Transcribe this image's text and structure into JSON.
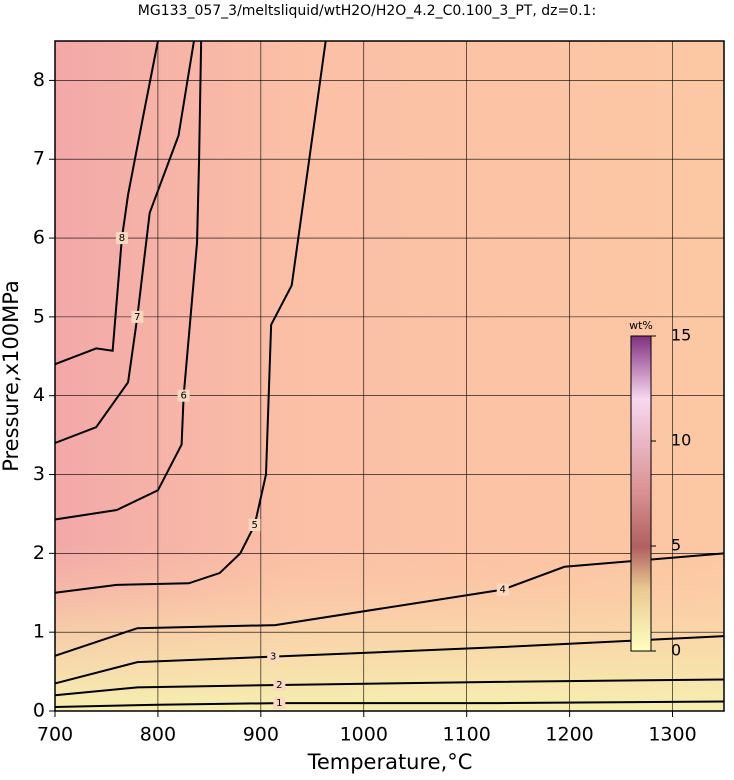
{
  "chart_data": {
    "type": "contour",
    "title": "MG133_057_3/meltsliquid/wtH2O/H2O_4.2_C0.100_3_PT, dz=0.1:",
    "x_label": "Temperature,°C",
    "y_label": "Pressure,x100MPa",
    "xlim": [
      700,
      1350
    ],
    "ylim": [
      0,
      8.5
    ],
    "xticks": [
      700,
      800,
      900,
      1000,
      1100,
      1200,
      1300
    ],
    "yticks": [
      0,
      1,
      2,
      3,
      4,
      5,
      6,
      7,
      8
    ],
    "grid": true,
    "contours": [
      {
        "level": 1,
        "x": [
          700,
          800,
          918,
          1130,
          1350
        ],
        "y": [
          0.05,
          0.08,
          0.1,
          0.1,
          0.12
        ]
      },
      {
        "level": 2,
        "x": [
          700,
          780,
          918,
          1130,
          1350
        ],
        "y": [
          0.2,
          0.3,
          0.33,
          0.37,
          0.4
        ]
      },
      {
        "level": 3,
        "x": [
          700,
          780,
          912,
          1132,
          1350
        ],
        "y": [
          0.35,
          0.62,
          0.69,
          0.81,
          0.95
        ]
      },
      {
        "level": 4,
        "x": [
          700,
          780,
          914,
          1135,
          1195,
          1350
        ],
        "y": [
          0.7,
          1.05,
          1.09,
          1.54,
          1.83,
          2.0
        ]
      },
      {
        "level": 5,
        "x": [
          700,
          760,
          830,
          860,
          880,
          894,
          905,
          910,
          930,
          963
        ],
        "y": [
          1.5,
          1.6,
          1.62,
          1.75,
          2.0,
          2.36,
          3.0,
          4.9,
          5.4,
          8.5
        ]
      },
      {
        "level": 6,
        "x": [
          700,
          760,
          800,
          823,
          825,
          838,
          840,
          842
        ],
        "y": [
          2.43,
          2.55,
          2.8,
          3.38,
          4.0,
          5.94,
          7.0,
          8.5
        ]
      },
      {
        "level": 7,
        "x": [
          700,
          740,
          771,
          780,
          792,
          820,
          835
        ],
        "y": [
          3.4,
          3.6,
          4.17,
          5.0,
          6.32,
          7.3,
          8.5
        ]
      },
      {
        "level": 8,
        "x": [
          700,
          740,
          756,
          765,
          771,
          785,
          800
        ],
        "y": [
          4.4,
          4.6,
          4.57,
          6.0,
          6.55,
          7.5,
          8.5
        ]
      }
    ],
    "colorbar": {
      "label": "wt%",
      "lim": [
        0,
        15
      ],
      "ticks": [
        0,
        5,
        10,
        15
      ]
    }
  }
}
